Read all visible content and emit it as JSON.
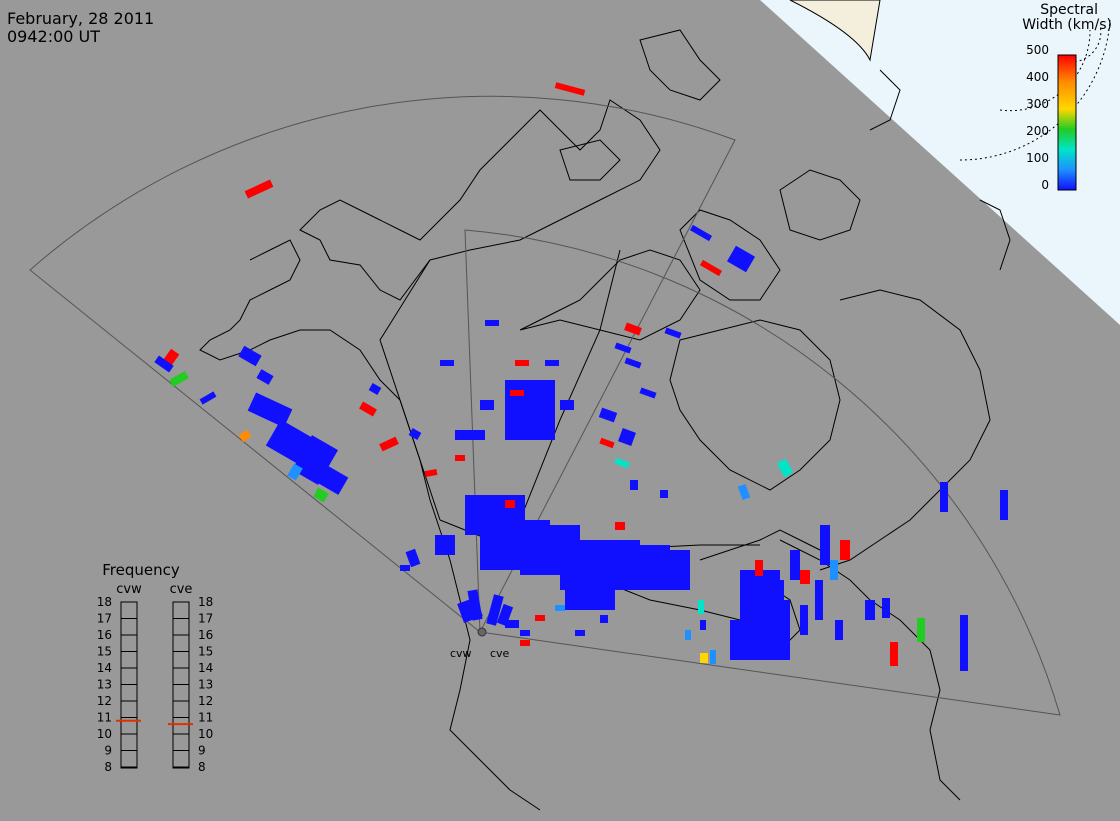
{
  "header": {
    "date": "February, 28 2011",
    "time": "0942:00 UT"
  },
  "colorbar": {
    "title_line1": "Spectral",
    "title_line2": "Width (km/s)",
    "ticks": [
      "500",
      "400",
      "300",
      "200",
      "100",
      "0"
    ],
    "colors": [
      "#ff0000",
      "#ff8c00",
      "#ffd700",
      "#22cc22",
      "#00e5c8",
      "#1e90ff",
      "#1010ff"
    ]
  },
  "radars": {
    "west": "cvw",
    "east": "cve"
  },
  "frequency": {
    "title": "Frequency",
    "west_label": "cvw",
    "east_label": "cve",
    "levels": [
      "18",
      "17",
      "16",
      "15",
      "14",
      "13",
      "12",
      "11",
      "10",
      "9",
      "8"
    ],
    "west_value": 10.8,
    "east_value": 10.6
  },
  "colors": {
    "background": "#999999",
    "map_line": "#000000",
    "fov_line": "#555555",
    "daylight": "#eaf6fc",
    "marker": "#e03000"
  }
}
